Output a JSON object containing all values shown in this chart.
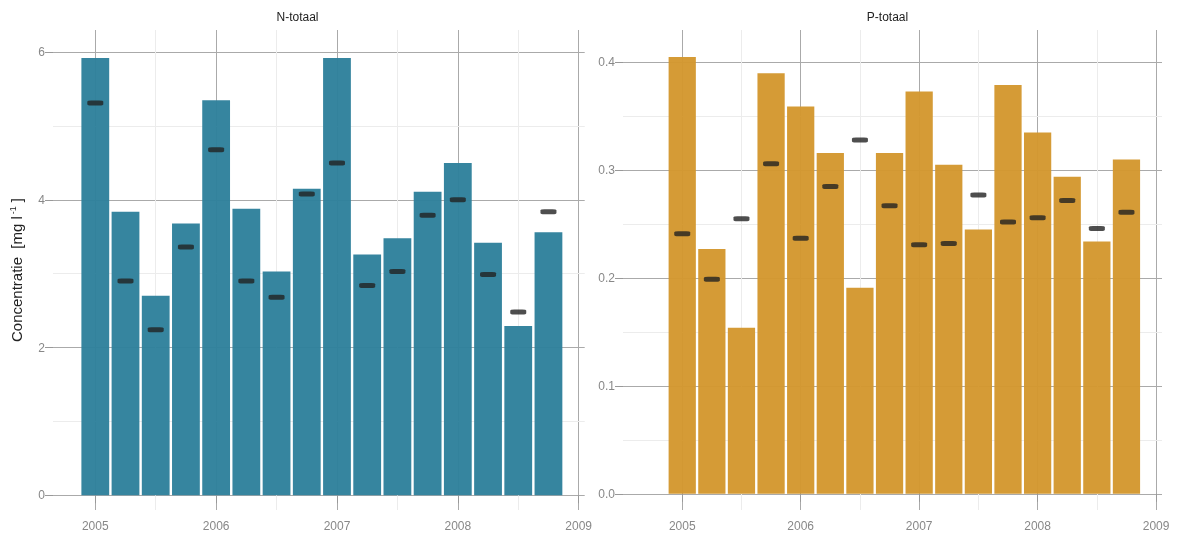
{
  "chart_data": [
    {
      "type": "bar",
      "title": "N-totaal",
      "ylabel": "Concentratie  [mg l$^{-1}$]",
      "x": [
        2005,
        2005.25,
        2005.5,
        2005.75,
        2006,
        2006.25,
        2006.5,
        2006.75,
        2007,
        2007.25,
        2007.5,
        2007.75,
        2008,
        2008.25,
        2008.5,
        2008.75
      ],
      "series": [
        {
          "color": "#2f819c",
          "values": [
            5.92,
            3.84,
            2.7,
            3.68,
            5.35,
            3.88,
            3.03,
            4.15,
            5.92,
            3.26,
            3.48,
            4.11,
            4.5,
            3.42,
            2.29,
            3.56
          ]
        },
        {
          "type": "scatter",
          "color": "#222222",
          "values": [
            5.31,
            2.9,
            2.24,
            3.36,
            4.68,
            2.9,
            2.68,
            4.08,
            4.5,
            2.84,
            3.03,
            3.79,
            4.0,
            2.99,
            2.48,
            3.84
          ]
        }
      ],
      "xlim": [
        2004.65,
        2009.05
      ],
      "xticks": [
        2005,
        2006,
        2007,
        2008,
        2009
      ],
      "ylim": [
        -0.2,
        6.3
      ],
      "yticks": [
        0,
        2,
        4,
        6
      ],
      "grid": true
    },
    {
      "type": "bar",
      "title": "P-totaal",
      "x": [
        2005,
        2005.25,
        2005.5,
        2005.75,
        2006,
        2006.25,
        2006.5,
        2006.75,
        2007,
        2007.25,
        2007.5,
        2007.75,
        2008,
        2008.25,
        2008.5,
        2008.75
      ],
      "series": [
        {
          "color": "#d4982f",
          "values": [
            0.405,
            0.227,
            0.154,
            0.39,
            0.359,
            0.316,
            0.191,
            0.316,
            0.373,
            0.305,
            0.245,
            0.379,
            0.335,
            0.294,
            0.234,
            0.31
          ]
        },
        {
          "type": "scatter",
          "color": "#222222",
          "values": [
            0.241,
            0.199,
            0.255,
            0.306,
            0.237,
            0.285,
            0.328,
            0.267,
            0.231,
            0.232,
            0.277,
            0.252,
            0.256,
            0.272,
            0.246,
            0.261
          ]
        }
      ],
      "xlim": [
        2004.5,
        2009.05
      ],
      "xticks": [
        2005,
        2006,
        2007,
        2008,
        2009
      ],
      "ylim": [
        -0.015,
        0.43
      ],
      "yticks": [
        {
          "value": 0,
          "label": "0.0"
        },
        0.1,
        0.2,
        0.3,
        0.4
      ],
      "grid": true
    }
  ]
}
